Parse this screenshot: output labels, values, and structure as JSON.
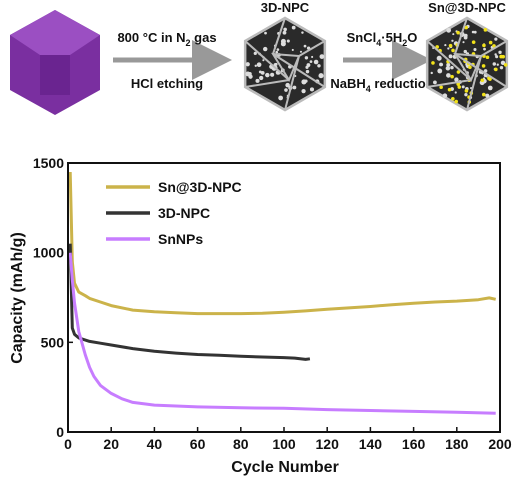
{
  "schematic": {
    "step1_top": [
      "800 °C in N",
      "2",
      " gas"
    ],
    "step1_bottom": "HCl etching",
    "product1": "3D-NPC",
    "step2_top": [
      "SnCl",
      "4",
      "·5H",
      "2",
      "O"
    ],
    "step2_bottom": [
      "NaBH",
      "4",
      " reduction"
    ],
    "product2": "Sn@3D-NPC"
  },
  "chart_data": {
    "type": "line",
    "xlabel": "Cycle Number",
    "ylabel": "Capacity (mAh/g)",
    "xlim": [
      0,
      200
    ],
    "xticks": [
      0,
      20,
      40,
      60,
      80,
      100,
      120,
      140,
      160,
      180,
      200
    ],
    "ylim": [
      0,
      1500
    ],
    "yticks": [
      0,
      500,
      1000,
      1500
    ],
    "legend": "upper-left",
    "series": [
      {
        "name": "Sn@3D-NPC",
        "color": "#cbb34a",
        "x": [
          1,
          2,
          3,
          5,
          8,
          10,
          15,
          20,
          30,
          40,
          50,
          60,
          70,
          80,
          90,
          100,
          110,
          120,
          130,
          140,
          150,
          160,
          170,
          180,
          190,
          195,
          198
        ],
        "values": [
          1450,
          950,
          830,
          780,
          760,
          745,
          725,
          705,
          680,
          670,
          665,
          660,
          660,
          660,
          662,
          668,
          675,
          685,
          692,
          700,
          710,
          718,
          725,
          730,
          738,
          748,
          740
        ]
      },
      {
        "name": "3D-NPC",
        "color": "#333333",
        "x": [
          1,
          2,
          3,
          5,
          10,
          15,
          20,
          30,
          40,
          50,
          60,
          70,
          80,
          90,
          100,
          105,
          110,
          112
        ],
        "values": [
          1050,
          580,
          545,
          525,
          505,
          495,
          485,
          465,
          450,
          440,
          432,
          428,
          422,
          418,
          415,
          412,
          405,
          408
        ]
      },
      {
        "name": "SnNPs",
        "color": "#c77dff",
        "x": [
          1,
          2,
          3,
          5,
          8,
          10,
          12,
          15,
          20,
          25,
          30,
          40,
          50,
          60,
          80,
          100,
          120,
          140,
          160,
          180,
          198
        ],
        "values": [
          1000,
          850,
          720,
          560,
          430,
          360,
          310,
          260,
          215,
          185,
          165,
          150,
          145,
          140,
          135,
          132,
          125,
          120,
          115,
          110,
          105
        ]
      }
    ]
  }
}
